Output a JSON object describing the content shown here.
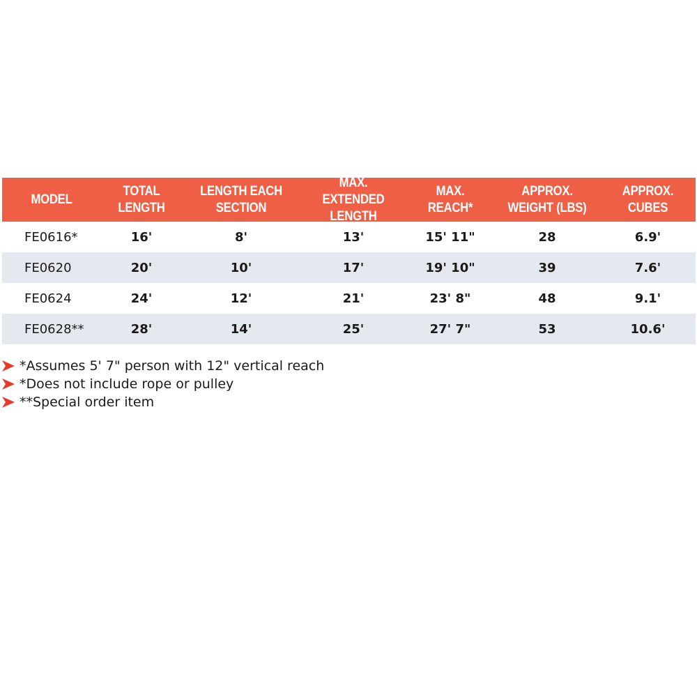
{
  "table": {
    "headers": [
      "MODEL",
      "TOTAL\nLENGTH",
      "LENGTH EACH\nSECTION",
      "MAX. EXTENDED\nLENGTH",
      "MAX.\nREACH*",
      "APPROX.\nWEIGHT (LBS)",
      "APPROX.\nCUBES"
    ],
    "rows": [
      [
        "FE0616*",
        "16'",
        "8'",
        "13'",
        "15' 11\"",
        "28",
        "6.9'"
      ],
      [
        "FE0620",
        "20'",
        "10'",
        "17'",
        "19' 10\"",
        "39",
        "7.6'"
      ],
      [
        "FE0624",
        "24'",
        "12'",
        "21'",
        "23' 8\"",
        "48",
        "9.1'"
      ],
      [
        "FE0628**",
        "28'",
        "14'",
        "25'",
        "27' 7\"",
        "53",
        "10.6'"
      ]
    ]
  },
  "notes": [
    "*Assumes 5' 7\" person with 12\" vertical reach",
    "*Does not include rope or pulley",
    "**Special order item"
  ],
  "colors": {
    "header_bg": "#ef5f45",
    "alt_row_bg": "#e4e9f0",
    "arrow": "#e8392a"
  },
  "icons": {
    "note_bullet": "arrow-right-icon"
  }
}
